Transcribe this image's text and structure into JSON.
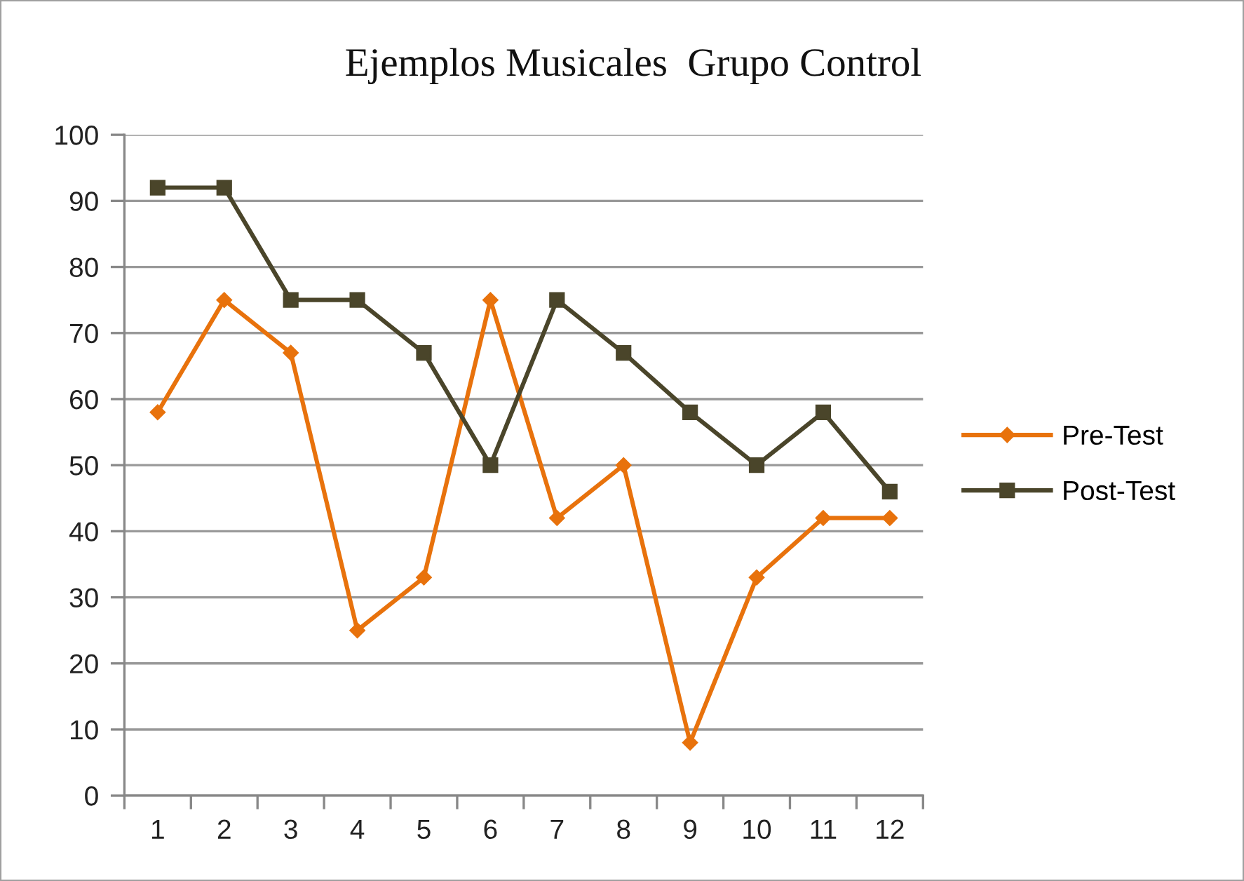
{
  "chart_data": {
    "type": "line",
    "title": "Ejemplos Musicales  Grupo Control",
    "categories": [
      "1",
      "2",
      "3",
      "4",
      "5",
      "6",
      "7",
      "8",
      "9",
      "10",
      "11",
      "12"
    ],
    "series": [
      {
        "name": "Pre-Test",
        "color": "#e8720c",
        "marker": "diamond",
        "values": [
          58,
          75,
          67,
          25,
          33,
          75,
          42,
          50,
          8,
          33,
          42,
          42
        ]
      },
      {
        "name": "Post-Test",
        "color": "#4a452a",
        "marker": "square",
        "values": [
          92,
          92,
          75,
          75,
          67,
          50,
          75,
          67,
          58,
          50,
          58,
          46
        ]
      }
    ],
    "ylim": [
      0,
      100
    ],
    "yticks": [
      0,
      10,
      20,
      30,
      40,
      50,
      60,
      70,
      80,
      90,
      100
    ],
    "grid": "y",
    "legend": "right",
    "line_style": "solid"
  }
}
